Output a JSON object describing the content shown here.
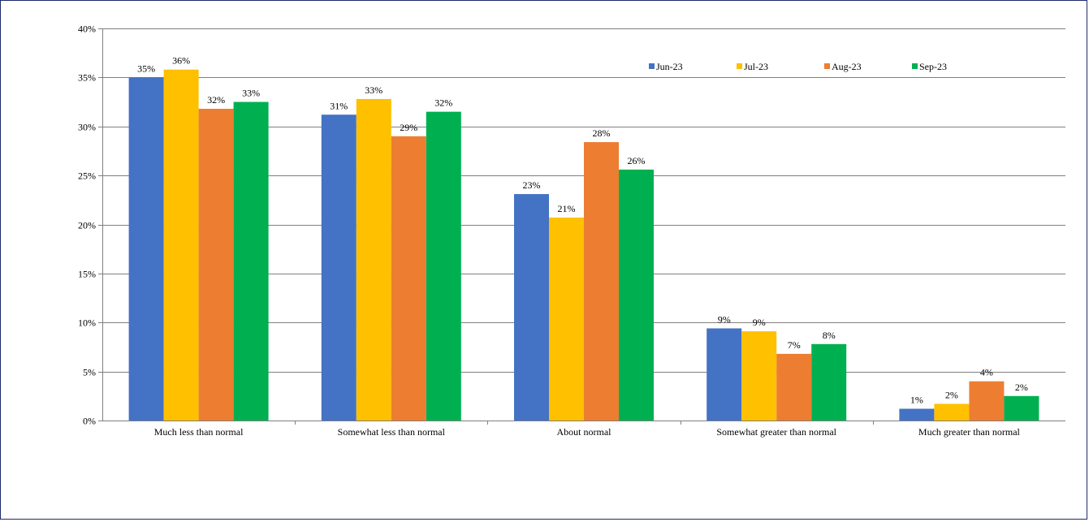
{
  "chart_data": {
    "type": "bar",
    "categories": [
      "Much less than normal",
      "Somewhat less than normal",
      "About normal",
      "Somewhat greater than normal",
      "Much greater than normal"
    ],
    "series": [
      {
        "name": "Jun-23",
        "color": "#4472C4",
        "values": [
          35.0,
          31.2,
          23.1,
          9.4,
          1.2
        ],
        "labels": [
          "35%",
          "31%",
          "23%",
          "9%",
          "1%"
        ]
      },
      {
        "name": "Jul-23",
        "color": "#FFC000",
        "values": [
          35.8,
          32.8,
          20.7,
          9.1,
          1.7
        ],
        "labels": [
          "36%",
          "33%",
          "21%",
          "9%",
          "2%"
        ]
      },
      {
        "name": "Aug-23",
        "color": "#ED7D31",
        "values": [
          31.8,
          29.0,
          28.4,
          6.8,
          4.0
        ],
        "labels": [
          "32%",
          "29%",
          "28%",
          "7%",
          "4%"
        ]
      },
      {
        "name": "Sep-23",
        "color": "#00B050",
        "values": [
          32.5,
          31.5,
          25.6,
          7.8,
          2.5
        ],
        "labels": [
          "33%",
          "32%",
          "26%",
          "8%",
          "2%"
        ]
      }
    ],
    "y_ticks": [
      "0%",
      "5%",
      "10%",
      "15%",
      "20%",
      "25%",
      "30%",
      "35%",
      "40%"
    ],
    "ylim": [
      0,
      40
    ],
    "grid": true,
    "legend_position": "top-right"
  }
}
